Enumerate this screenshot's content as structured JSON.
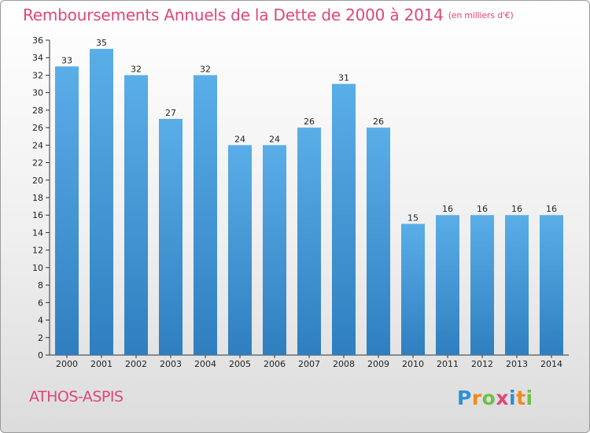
{
  "header": {
    "title": "Remboursements Annuels de la Dette de 2000 à 2014",
    "unit": "(en milliers d'€)"
  },
  "footer": {
    "commune": "ATHOS-ASPIS",
    "logo_letters": [
      "P",
      "r",
      "o",
      "x",
      "i",
      "t",
      "i"
    ]
  },
  "colors": {
    "title": "#e0457b",
    "bar_top": "#5aaee8",
    "bar_bottom": "#2f7fc0",
    "logo": [
      "#2f8fd6",
      "#f08a1c",
      "#6cc04a",
      "#e0457b",
      "#2f8fd6",
      "#f08a1c",
      "#6cc04a"
    ]
  },
  "chart_data": {
    "type": "bar",
    "title": "Remboursements Annuels de la Dette de 2000 à 2014",
    "xlabel": "",
    "ylabel": "",
    "ylim": [
      0,
      36
    ],
    "yticks": [
      0,
      2,
      4,
      6,
      8,
      10,
      12,
      14,
      16,
      18,
      20,
      22,
      24,
      26,
      28,
      30,
      32,
      34,
      36
    ],
    "categories": [
      "2000",
      "2001",
      "2002",
      "2003",
      "2004",
      "2005",
      "2006",
      "2007",
      "2008",
      "2009",
      "2010",
      "2011",
      "2012",
      "2013",
      "2014"
    ],
    "values": [
      33,
      35,
      32,
      27,
      32,
      24,
      24,
      26,
      31,
      26,
      15,
      16,
      16,
      16,
      16
    ],
    "grid": false,
    "legend": "none"
  }
}
